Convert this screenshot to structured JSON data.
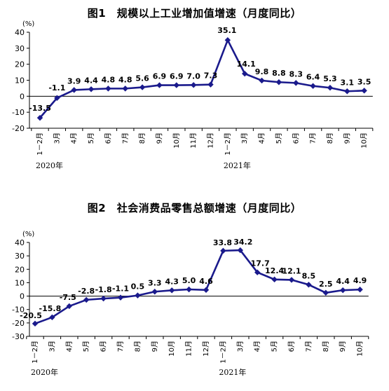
{
  "chart_data": [
    {
      "type": "line",
      "title": "图1　规模以上工业增加值增速（月度同比）",
      "ylabel": "(%)",
      "ylim": [
        -20,
        40
      ],
      "yticks": [
        40,
        30,
        20,
        10,
        0,
        -10,
        -20
      ],
      "categories": [
        "1－2月",
        "3月",
        "4月",
        "5月",
        "6月",
        "7月",
        "8月",
        "9月",
        "10月",
        "11月",
        "12月",
        "1－2月",
        "3月",
        "4月",
        "5月",
        "6月",
        "7月",
        "8月",
        "9月",
        "10月"
      ],
      "year_labels": [
        {
          "text": "2020年",
          "start_index": 0
        },
        {
          "text": "2021年",
          "start_index": 11
        }
      ],
      "series": [
        {
          "values": [
            -13.5,
            -1.1,
            3.9,
            4.4,
            4.8,
            4.8,
            5.6,
            6.9,
            6.9,
            7.0,
            7.3,
            35.1,
            14.1,
            9.8,
            8.8,
            8.3,
            6.4,
            5.3,
            3.1,
            3.5
          ],
          "labels": [
            "-13.5",
            "-1.1",
            "3.9",
            "4.4",
            "4.8",
            "4.8",
            "5.6",
            "6.9",
            "6.9",
            "7.0",
            "7.3",
            "35.1",
            "14.1",
            "9.8",
            "8.8",
            "8.3",
            "6.4",
            "5.3",
            "3.1",
            "3.5"
          ]
        }
      ],
      "grid": false,
      "color": "#1a1a8c"
    },
    {
      "type": "line",
      "title": "图2　社会消费品零售总额增速（月度同比）",
      "ylabel": "(%)",
      "ylim": [
        -30,
        40
      ],
      "yticks": [
        40,
        30,
        20,
        10,
        0,
        -10,
        -20,
        -30
      ],
      "categories": [
        "1－2月",
        "3月",
        "4月",
        "5月",
        "6月",
        "7月",
        "8月",
        "9月",
        "10月",
        "11月",
        "12月",
        "1－2月",
        "3月",
        "4月",
        "5月",
        "6月",
        "7月",
        "8月",
        "9月",
        "10月"
      ],
      "year_labels": [
        {
          "text": "2020年",
          "start_index": 0
        },
        {
          "text": "2021年",
          "start_index": 11
        }
      ],
      "series": [
        {
          "values": [
            -20.5,
            -15.8,
            -7.5,
            -2.8,
            -1.8,
            -1.1,
            0.5,
            3.3,
            4.3,
            5.0,
            4.6,
            33.8,
            34.2,
            17.7,
            12.4,
            12.1,
            8.5,
            2.5,
            4.4,
            4.9
          ],
          "labels": [
            "-20.5",
            "-15.8",
            "-7.5",
            "-2.8",
            "-1.8",
            "-1.1",
            "0.5",
            "3.3",
            "4.3",
            "5.0",
            "4.6",
            "33.8",
            "34.2",
            "17.7",
            "12.4",
            "12.1",
            "8.5",
            "2.5",
            "4.4",
            "4.9"
          ]
        }
      ],
      "grid": false,
      "color": "#1a1a8c"
    }
  ]
}
